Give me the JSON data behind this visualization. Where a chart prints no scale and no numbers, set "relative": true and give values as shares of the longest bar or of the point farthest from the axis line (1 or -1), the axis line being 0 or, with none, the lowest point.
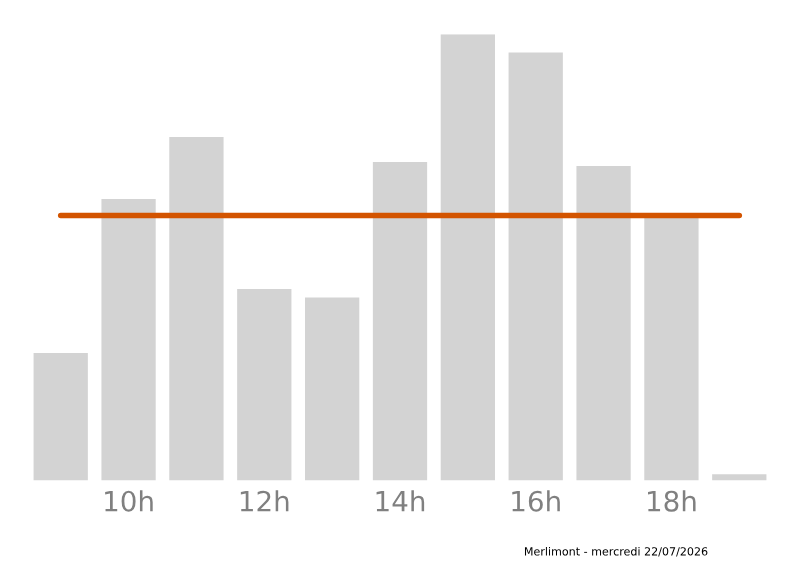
{
  "chart_data": {
    "type": "bar",
    "relative": true,
    "categories": [
      null,
      "10h",
      null,
      "12h",
      null,
      "14h",
      null,
      "16h",
      null,
      "18h",
      null
    ],
    "values": [
      0.286,
      0.631,
      0.77,
      0.429,
      0.41,
      0.714,
      1,
      0.959,
      0.705,
      0.594,
      0.014
    ],
    "color": "#d3d3d3",
    "ref_lines": [
      {
        "axis": "y",
        "value": 0.594,
        "color": "#d35400",
        "line_style": "solid"
      }
    ],
    "grid": false,
    "legend": false,
    "annotations": [
      "Merlimont - mercredi 22/07/2026"
    ]
  }
}
